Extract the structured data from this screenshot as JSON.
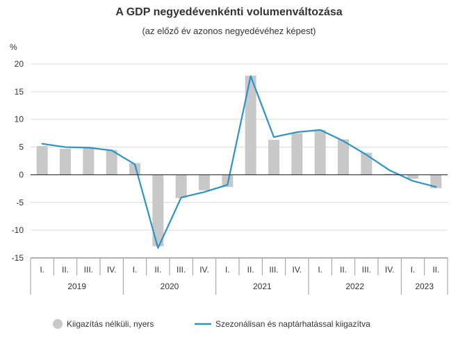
{
  "chart_data": {
    "type": "bar",
    "title": "A GDP negyedévenkénti volumenváltozása",
    "subtitle": "(az előző év azonos negyedévéhez képest)",
    "ylabel": "%",
    "ylim": [
      -15,
      20
    ],
    "yticks": [
      "20",
      "15",
      "10",
      "5",
      "0",
      "-5",
      "-10",
      "-15"
    ],
    "categories": [
      "I.",
      "II.",
      "III.",
      "IV.",
      "I.",
      "II.",
      "III.",
      "IV.",
      "I.",
      "II.",
      "III.",
      "IV.",
      "I.",
      "II.",
      "III.",
      "IV.",
      "I.",
      "II."
    ],
    "years": [
      {
        "label": "2019",
        "count": 4
      },
      {
        "label": "2020",
        "count": 4
      },
      {
        "label": "2021",
        "count": 4
      },
      {
        "label": "2022",
        "count": 4
      },
      {
        "label": "2023",
        "count": 2
      }
    ],
    "series": [
      {
        "name": "Kiigazítás nélküli, nyers",
        "type": "bar",
        "color": "#c8c8c8",
        "values": [
          5.2,
          4.7,
          5.0,
          4.5,
          2.1,
          -12.9,
          -4.2,
          -2.8,
          -2.2,
          17.9,
          6.3,
          7.5,
          8.1,
          6.4,
          4.0,
          0.2,
          -0.7,
          -2.4
        ]
      },
      {
        "name": "Szezonálisan és naptárhatással kiigazítva",
        "type": "line",
        "color": "#2a93c8",
        "values": [
          5.6,
          5.0,
          4.9,
          4.4,
          1.9,
          -13.2,
          -4.1,
          -3.1,
          -1.8,
          17.8,
          6.8,
          7.7,
          8.1,
          6.1,
          3.6,
          0.8,
          -1.1,
          -2.2
        ]
      }
    ],
    "grid": true,
    "legend": "bottom"
  }
}
